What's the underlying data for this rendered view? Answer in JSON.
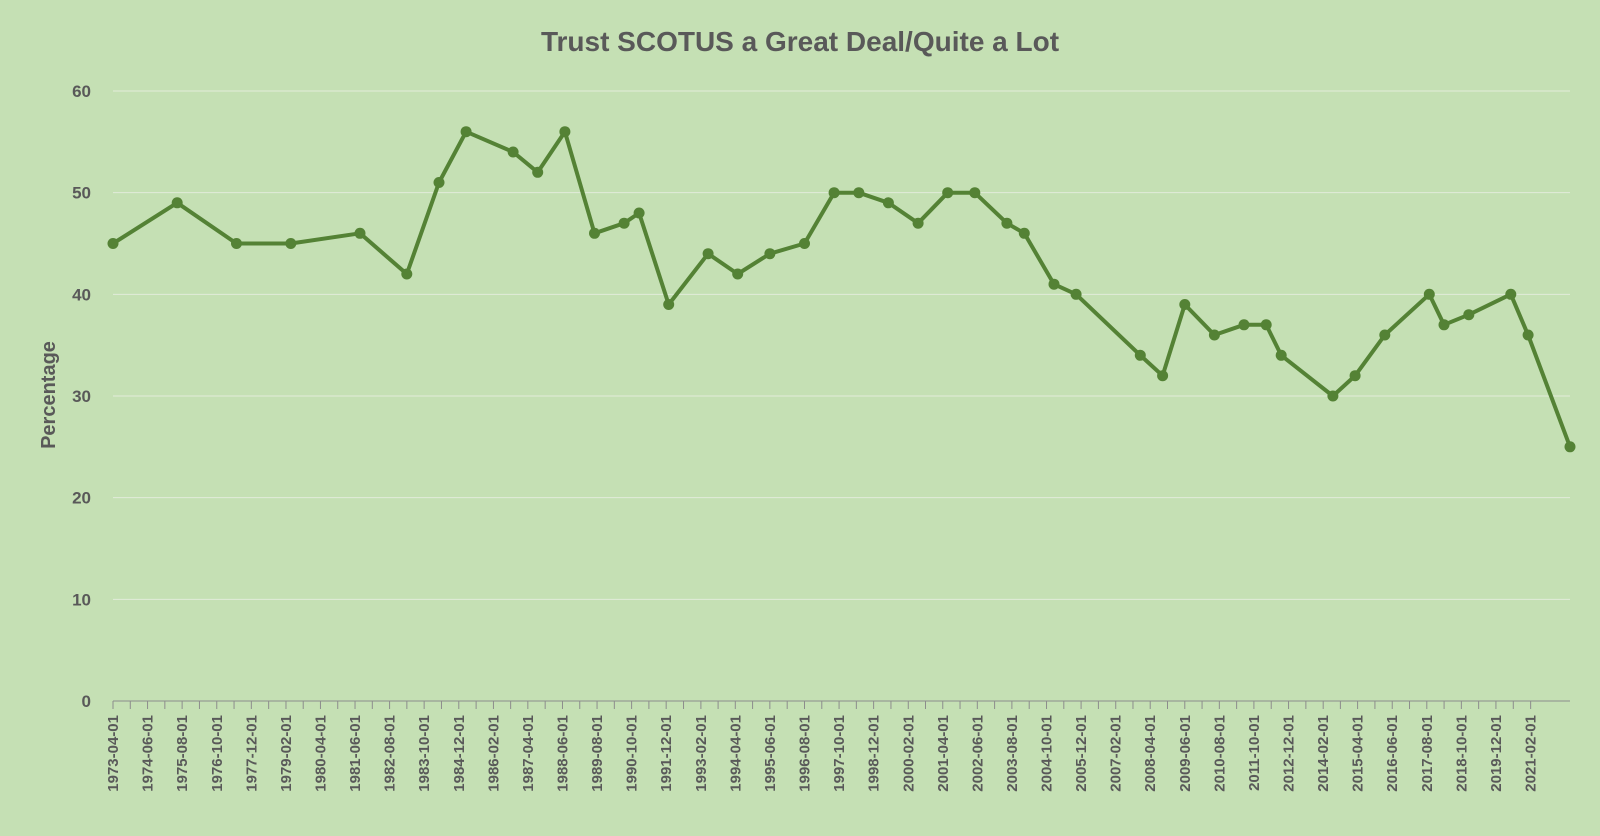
{
  "colors": {
    "background": "#c5e0b4",
    "series": "#548235",
    "text": "#595959"
  },
  "chart_data": {
    "type": "line",
    "title": "Trust SCOTUS a Great Deal/Quite a Lot",
    "xlabel": "",
    "ylabel": "Percentage",
    "ylim": [
      0,
      60
    ],
    "yticks": [
      0,
      10,
      20,
      30,
      40,
      50,
      60
    ],
    "grid": true,
    "legend": "none",
    "xticks": [
      "1973-04-01",
      "1974-06-01",
      "1975-08-01",
      "1976-10-01",
      "1977-12-01",
      "1979-02-01",
      "1980-04-01",
      "1981-06-01",
      "1982-08-01",
      "1983-10-01",
      "1984-12-01",
      "1986-02-01",
      "1987-04-01",
      "1988-06-01",
      "1989-08-01",
      "1990-10-01",
      "1991-12-01",
      "1993-02-01",
      "1994-04-01",
      "1995-06-01",
      "1996-08-01",
      "1997-10-01",
      "1998-12-01",
      "2000-02-01",
      "2001-04-01",
      "2002-06-01",
      "2003-08-01",
      "2004-10-01",
      "2005-12-01",
      "2007-02-01",
      "2008-04-01",
      "2009-06-01",
      "2010-08-01",
      "2011-10-01",
      "2012-12-01",
      "2014-02-01",
      "2015-04-01",
      "2016-06-01",
      "2017-08-01",
      "2018-10-01",
      "2019-12-01",
      "2021-02-01"
    ],
    "xrange": [
      "1973-04-01",
      "2022-06-01"
    ],
    "series": [
      {
        "points": [
          [
            "1973-04-01",
            45
          ],
          [
            "1975-06-01",
            49
          ],
          [
            "1977-06-01",
            45
          ],
          [
            "1979-04-01",
            45
          ],
          [
            "1981-08-01",
            46
          ],
          [
            "1983-03-01",
            42
          ],
          [
            "1984-04-01",
            51
          ],
          [
            "1985-03-01",
            56
          ],
          [
            "1986-10-01",
            54
          ],
          [
            "1987-08-01",
            52
          ],
          [
            "1988-07-01",
            56
          ],
          [
            "1989-07-01",
            46
          ],
          [
            "1990-07-01",
            47
          ],
          [
            "1991-01-01",
            48
          ],
          [
            "1992-01-01",
            39
          ],
          [
            "1993-05-01",
            44
          ],
          [
            "1994-05-01",
            42
          ],
          [
            "1995-06-01",
            44
          ],
          [
            "1996-08-01",
            45
          ],
          [
            "1997-08-01",
            50
          ],
          [
            "1998-06-01",
            50
          ],
          [
            "1999-06-01",
            49
          ],
          [
            "2000-06-01",
            47
          ],
          [
            "2001-06-01",
            50
          ],
          [
            "2002-05-01",
            50
          ],
          [
            "2003-06-01",
            47
          ],
          [
            "2004-01-01",
            46
          ],
          [
            "2005-01-01",
            41
          ],
          [
            "2005-10-01",
            40
          ],
          [
            "2007-12-01",
            34
          ],
          [
            "2008-09-01",
            32
          ],
          [
            "2009-06-01",
            39
          ],
          [
            "2010-06-01",
            36
          ],
          [
            "2011-06-01",
            37
          ],
          [
            "2012-03-01",
            37
          ],
          [
            "2012-09-01",
            34
          ],
          [
            "2014-06-01",
            30
          ],
          [
            "2015-03-01",
            32
          ],
          [
            "2016-03-01",
            36
          ],
          [
            "2017-09-01",
            40
          ],
          [
            "2018-03-01",
            37
          ],
          [
            "2019-01-01",
            38
          ],
          [
            "2020-06-01",
            40
          ],
          [
            "2021-01-01",
            36
          ],
          [
            "2022-06-01",
            25
          ]
        ]
      }
    ]
  }
}
